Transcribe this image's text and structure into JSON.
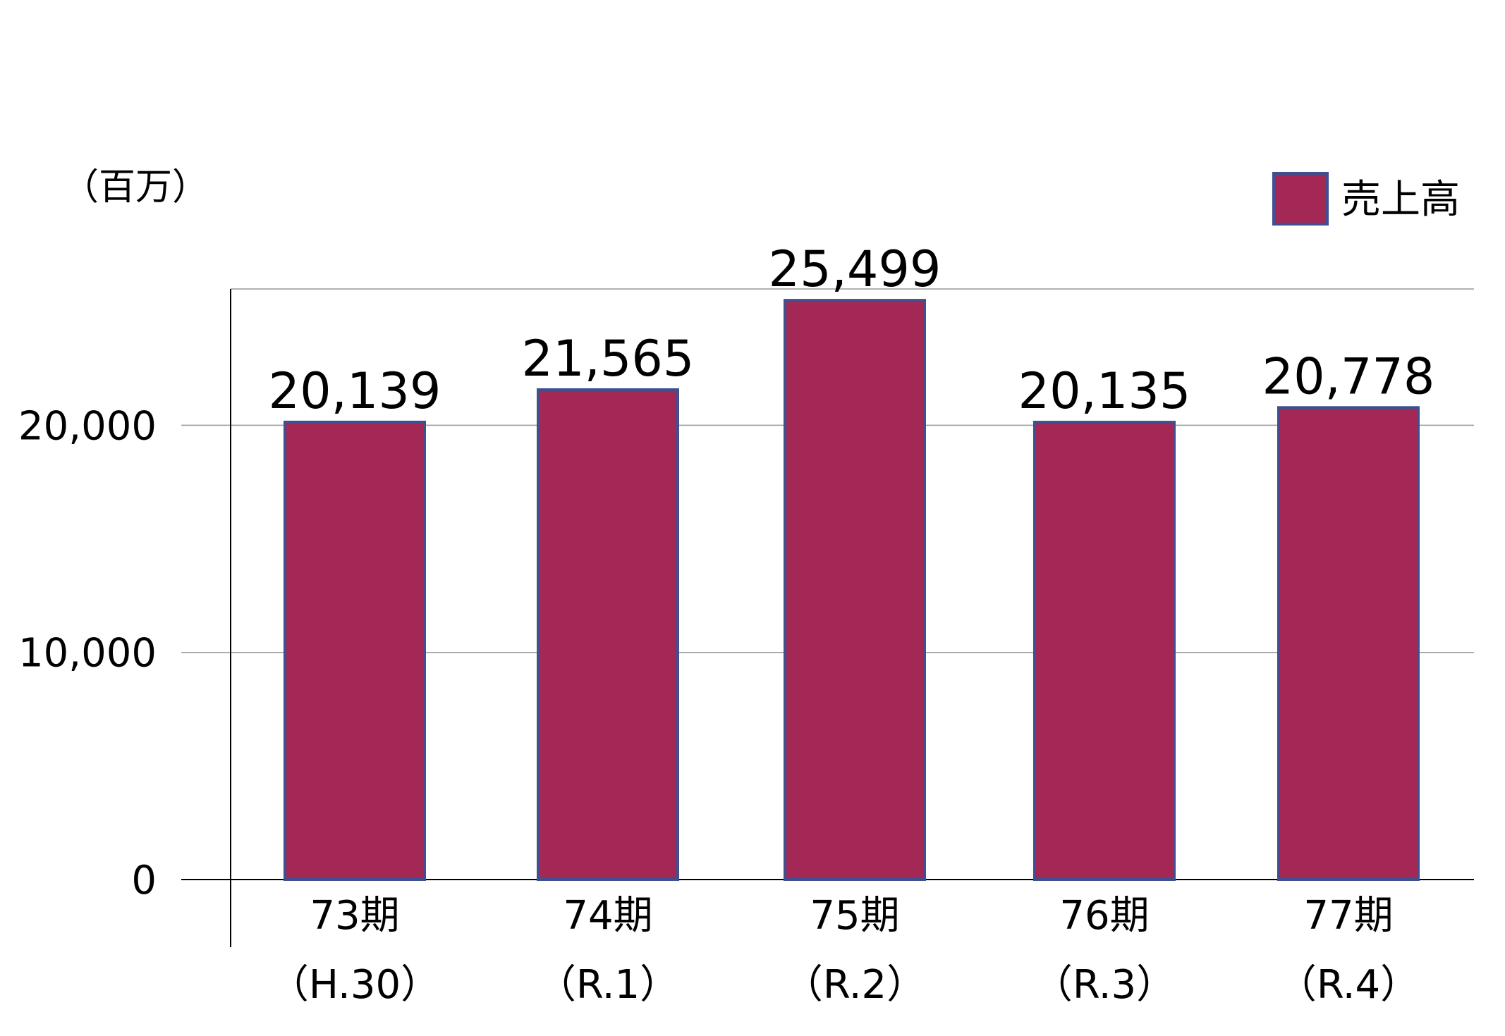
{
  "chart_data": {
    "type": "bar",
    "unit_label": "（百万）",
    "categories": [
      "73期",
      "74期",
      "75期",
      "76期",
      "77期"
    ],
    "sub_categories": [
      "（H.30）",
      "（R.1）",
      "（R.2）",
      "（R.3）",
      "（R.4）"
    ],
    "series": [
      {
        "name": "売上高",
        "values": [
          20139,
          21565,
          25499,
          20135,
          20778
        ]
      }
    ],
    "data_labels": [
      "20,139",
      "21,565",
      "25,499",
      "20,135",
      "20,778"
    ],
    "y_ticks": [
      0,
      10000,
      20000
    ],
    "y_tick_labels": [
      "0",
      "10,000",
      "20,000"
    ],
    "ylim": [
      0,
      26000
    ],
    "grid": true,
    "legend_position": "top-right",
    "colors": {
      "bar_fill": "#A42855",
      "bar_stroke": "#3F4F8F",
      "grid": "#999999",
      "axis": "#000000"
    }
  }
}
